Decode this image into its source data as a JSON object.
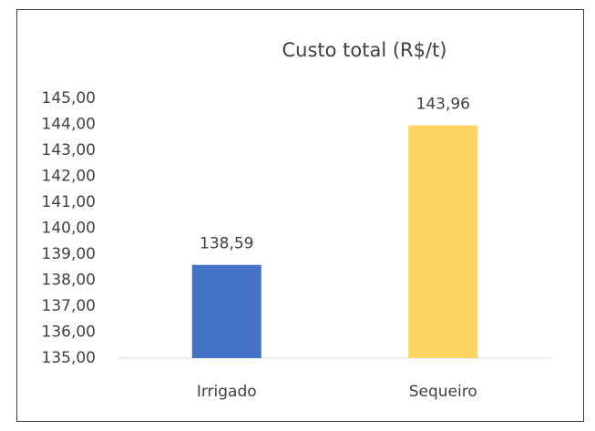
{
  "chart_data": {
    "type": "bar",
    "title": "Custo total (R$/t)",
    "categories": [
      "Irrigado",
      "Sequeiro"
    ],
    "values": [
      138.59,
      143.96
    ],
    "value_labels": [
      "138,59",
      "143,96"
    ],
    "colors": [
      "#4472c4",
      "#fcd660"
    ],
    "ylim": [
      135,
      145
    ],
    "yticks": [
      {
        "value": 135,
        "label": "135,00"
      },
      {
        "value": 136,
        "label": "136,00"
      },
      {
        "value": 137,
        "label": "137,00"
      },
      {
        "value": 138,
        "label": "138,00"
      },
      {
        "value": 139,
        "label": "139,00"
      },
      {
        "value": 140,
        "label": "140,00"
      },
      {
        "value": 141,
        "label": "141,00"
      },
      {
        "value": 142,
        "label": "142,00"
      },
      {
        "value": 143,
        "label": "143,00"
      },
      {
        "value": 144,
        "label": "144,00"
      },
      {
        "value": 145,
        "label": "145,00"
      }
    ],
    "grid": false
  }
}
